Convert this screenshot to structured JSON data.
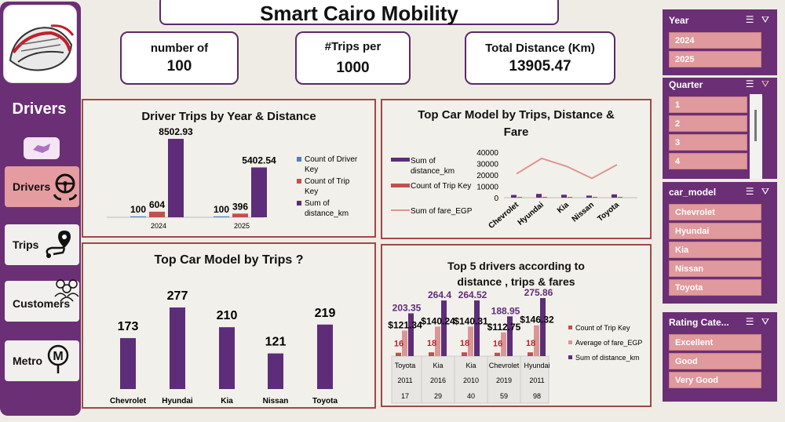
{
  "header": {
    "title": "Smart Cairo Mobility",
    "kpis": [
      {
        "label": "number of",
        "value": "100"
      },
      {
        "label": "#Trips per",
        "value": "1000"
      },
      {
        "label": "Total Distance (Km)",
        "value": "13905.47"
      }
    ]
  },
  "sidebar": {
    "section_title": "Drivers",
    "nav": [
      {
        "label": "Drivers",
        "icon": "steering-wheel-icon",
        "active": true
      },
      {
        "label": "Trips",
        "icon": "route-pin-icon",
        "active": false
      },
      {
        "label": "Customers",
        "icon": "people-icon",
        "active": false
      },
      {
        "label": "Metro",
        "icon": "metro-icon",
        "active": false
      }
    ]
  },
  "slicers": {
    "year": {
      "title": "Year",
      "items": [
        "2024",
        "2025"
      ]
    },
    "quarter": {
      "title": "Quarter",
      "items": [
        "1",
        "2",
        "3",
        "4"
      ]
    },
    "car_model": {
      "title": "car_model",
      "items": [
        "Chevrolet",
        "Hyundai",
        "Kia",
        "Nissan",
        "Toyota"
      ]
    },
    "rating": {
      "title": "Rating Cate...",
      "items": [
        "Excellent",
        "Good",
        "Very Good"
      ]
    }
  },
  "colors": {
    "purple": "#5e2d79",
    "red": "#c0504d",
    "pink": "#d99694",
    "blue": "#4f81bd",
    "panel_border": "#a04848"
  },
  "chart_data": [
    {
      "type": "bar",
      "title": "Driver Trips by Year & Distance",
      "categories": [
        "2024",
        "2025"
      ],
      "series": [
        {
          "name": "Count of Driver Key",
          "values": [
            100,
            100
          ]
        },
        {
          "name": "Count of Trip Key",
          "values": [
            604,
            396
          ]
        },
        {
          "name": "Sum of distance_km",
          "values": [
            8502.93,
            5402.54
          ]
        }
      ]
    },
    {
      "type": "bar",
      "title": "Top Car Model by Trips, Distance & Fare",
      "categories": [
        "Chevrolet",
        "Hyundai",
        "Kia",
        "Nissan",
        "Toyota"
      ],
      "ylim": [
        0,
        40000
      ],
      "yticks": [
        "40000",
        "30000",
        "20000",
        "10000",
        "0"
      ],
      "series": [
        {
          "name": "Sum of distance_km",
          "values": [
            2400,
            3300,
            2600,
            1800,
            2900
          ]
        },
        {
          "name": "Count of Trip Key",
          "values": [
            173,
            277,
            210,
            121,
            219
          ]
        },
        {
          "name": "Sum of fare_EGP",
          "values": [
            21000,
            34500,
            27500,
            17000,
            29000
          ]
        }
      ]
    },
    {
      "type": "bar",
      "title": "Top Car Model by Trips ?",
      "categories": [
        "Chevrolet",
        "Hyundai",
        "Kia",
        "Nissan",
        "Toyota"
      ],
      "values": [
        173,
        277,
        210,
        121,
        219
      ]
    },
    {
      "type": "bar",
      "title": "Top 5 drivers according to distance , trips & fares",
      "rows": [
        {
          "model": "Toyota",
          "year": "2011",
          "driver": "17"
        },
        {
          "model": "Kia",
          "year": "2016",
          "driver": "29"
        },
        {
          "model": "Kia",
          "year": "2010",
          "driver": "40"
        },
        {
          "model": "Chevrolet",
          "year": "2019",
          "driver": "59"
        },
        {
          "model": "Hyundai",
          "year": "2011",
          "driver": "98"
        }
      ],
      "series": [
        {
          "name": "Count of Trip Key",
          "values": [
            16,
            18,
            18,
            16,
            18
          ],
          "labels": [
            "16",
            "18",
            "18",
            "16",
            "18"
          ]
        },
        {
          "name": "Average of fare_EGP",
          "values": [
            121.34,
            140.24,
            140.31,
            112.75,
            146.32
          ],
          "labels": [
            "$121.34",
            "$140.24",
            "$140.31",
            "$112.75",
            "$146.32"
          ]
        },
        {
          "name": "Sum of distance_km",
          "values": [
            203.35,
            264.4,
            264.52,
            188.95,
            275.86
          ],
          "labels": [
            "203.35",
            "264.4",
            "264.52",
            "188.95",
            "275.86"
          ]
        }
      ]
    }
  ]
}
